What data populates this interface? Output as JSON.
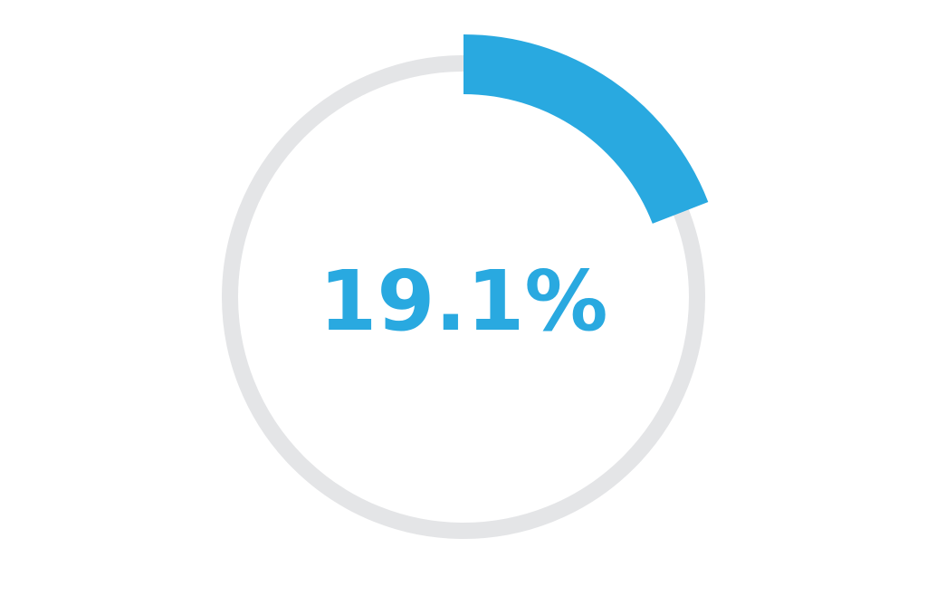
{
  "chart_data": {
    "type": "pie",
    "subtype": "progress-ring",
    "title": "",
    "values": [
      19.1
    ],
    "max": 100,
    "center_label": "19.1%",
    "colors": {
      "progress": "#29a9e0",
      "track": "#e4e5e7",
      "label": "#29a9e0"
    }
  }
}
